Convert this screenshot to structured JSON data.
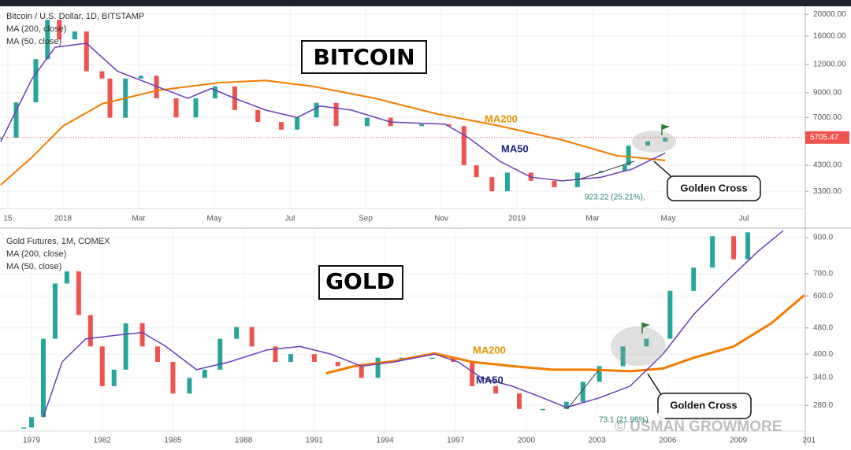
{
  "chart_data": [
    {
      "type": "candlestick",
      "title": "Bitcoin / U.S. Dollar, 1D, BITSTAMP",
      "log_scale": true,
      "grid": true,
      "xlim": [
        -1.667,
        19.625
      ],
      "ylim": [
        2770,
        21700
      ],
      "xticks": [
        {
          "value": -1.46,
          "label": "15"
        },
        {
          "value": 0,
          "label": "2018"
        },
        {
          "value": 2,
          "label": "Mar"
        },
        {
          "value": 4,
          "label": "May"
        },
        {
          "value": 6,
          "label": "Jul"
        },
        {
          "value": 8,
          "label": "Sep"
        },
        {
          "value": 10,
          "label": "Nov"
        },
        {
          "value": 12,
          "label": "2019"
        },
        {
          "value": 14,
          "label": "Mar"
        },
        {
          "value": 16,
          "label": "May"
        },
        {
          "value": 18,
          "label": "Jul"
        }
      ],
      "yticks": [
        {
          "value": 20000,
          "label": "20000.00"
        },
        {
          "value": 16000,
          "label": "16000.00"
        },
        {
          "value": 12000,
          "label": "12000.00"
        },
        {
          "value": 9000,
          "label": "9000.00"
        },
        {
          "value": 7000,
          "label": "7000.00"
        },
        {
          "value": 4300,
          "label": "4300.00"
        },
        {
          "value": 3300,
          "label": "3300.00"
        }
      ],
      "last_price": 5705.47,
      "last_price_color": "#ef5350",
      "up_color": "#26a69a",
      "down_color": "#ef5350",
      "series": [
        {
          "x": [
            -1.65,
            -1.24,
            -0.72,
            -0.41,
            -0.1,
            0.31,
            0.62,
            1.03,
            1.24,
            1.65,
            2.06,
            2.47,
            2.99,
            3.51,
            4.02,
            4.54,
            5.15,
            5.77,
            6.19,
            6.7,
            7.22,
            8.04,
            8.66,
            9.48,
            10.2,
            10.6,
            10.93,
            11.34,
            11.75,
            12.37,
            12.99,
            13.6,
            14.23,
            14.85,
            14.95,
            15.46,
            15.92
          ],
          "values": [
            5690,
            8160,
            12670,
            18900,
            15500,
            16800,
            11200,
            10400,
            6980,
            10400,
            10700,
            8500,
            7000,
            8500,
            9600,
            7550,
            6680,
            6180,
            7000,
            8120,
            6410,
            6980,
            6410,
            6530,
            6410,
            4300,
            3810,
            3300,
            3990,
            3670,
            3440,
            3990,
            4060,
            4300,
            5250,
            5480,
            5700
          ]
        },
        {
          "name": "MA (200, close)",
          "color": "#f57c00",
          "x": [
            -1.65,
            -0.82,
            0,
            1.03,
            2.47,
            4.12,
            5.36,
            6.6,
            8.25,
            9.9,
            11.55,
            13.2,
            14.64,
            15.92
          ],
          "values": [
            3520,
            4670,
            6410,
            8040,
            9200,
            9970,
            10200,
            9600,
            8500,
            7250,
            6410,
            5560,
            4740,
            4520
          ]
        },
        {
          "name": "MA (50, close)",
          "color": "#6a3db8",
          "x": [
            -1.65,
            -0.82,
            -0.21,
            0.62,
            1.44,
            2.47,
            3.3,
            3.92,
            4.54,
            5.36,
            6.19,
            6.8,
            7.63,
            8.66,
            10.1,
            10.72,
            11.55,
            12.37,
            13.2,
            14.23,
            15.05,
            15.92
          ],
          "values": [
            5460,
            10380,
            14300,
            14900,
            11200,
            9600,
            8500,
            9400,
            8500,
            7540,
            7000,
            7860,
            7540,
            6680,
            6530,
            5690,
            4480,
            3810,
            3670,
            3810,
            4140,
            4870
          ]
        }
      ],
      "annotations": [
        "BITCOIN",
        "MA200",
        "MA50",
        "Golden Cross",
        "923.22 (25.21%),"
      ]
    },
    {
      "type": "candlestick",
      "title": "Gold Futures, 1M, COMEX",
      "log_scale": true,
      "grid": true,
      "xlim": [
        1977.66,
        2011.84
      ],
      "ylim": [
        234,
        946
      ],
      "xticks": [
        1979,
        1982,
        1985,
        1988,
        1991,
        1994,
        1997,
        2000,
        2003,
        2006,
        2009,
        {
          "value": 2012,
          "label": "201"
        }
      ],
      "yticks": [
        {
          "value": 900,
          "label": "900.0"
        },
        {
          "value": 700,
          "label": "700.0"
        },
        {
          "value": 600,
          "label": "600.0"
        },
        {
          "value": 480,
          "label": "480.0"
        },
        {
          "value": 400,
          "label": "400.0"
        },
        {
          "value": 340,
          "label": "340.0"
        },
        {
          "value": 280,
          "label": "280.0"
        }
      ],
      "up_color": "#26a69a",
      "down_color": "#ef5350",
      "series": [
        {
          "x": [
            1978.67,
            1979,
            1979.5,
            1980,
            1980.5,
            1981,
            1981.5,
            1982,
            1982.5,
            1983,
            1983.7,
            1984.35,
            1985,
            1985.7,
            1986.35,
            1987,
            1987.7,
            1988.35,
            1989.35,
            1990,
            1991,
            1992,
            1993,
            1993.7,
            1994.7,
            1996,
            1996.9,
            1997.7,
            1998.7,
            1999.7,
            2000.7,
            2001.7,
            2002.4,
            2003.1,
            2004.1,
            2005.1,
            2006.1,
            2007.1,
            2007.9,
            2008.8,
            2009.4
          ],
          "values": [
            240,
            258,
            445,
            654,
            712,
            525,
            422,
            320,
            359,
            496,
            422,
            379,
            304,
            339,
            359,
            445,
            483,
            422,
            379,
            400,
            379,
            368,
            339,
            390,
            390,
            390,
            379,
            320,
            304,
            273,
            273,
            287,
            330,
            368,
            422,
            445,
            621,
            731,
            909,
            774,
            934
          ]
        },
        {
          "name": "MA (200, close)",
          "color": "#f57c00",
          "x": [
            1991.5,
            1992.7,
            1994.4,
            1996.1,
            1997.7,
            1999.4,
            2001.1,
            2002.7,
            2004.4,
            2005.8,
            2007.1,
            2008.8,
            2010.4,
            2011.8
          ],
          "values": [
            350,
            368,
            381,
            402,
            379,
            368,
            359,
            359,
            355,
            362,
            390,
            422,
            496,
            603
          ]
        },
        {
          "name": "MA (50, close)",
          "color": "#6a3db8",
          "x": [
            1979.5,
            1980.3,
            1981.3,
            1982.7,
            1983.7,
            1984.7,
            1986,
            1987.4,
            1989,
            1990.4,
            1991.7,
            1993,
            1994.4,
            1996.1,
            1997.1,
            1998.1,
            1999.4,
            2000.7,
            2001.7,
            2003.1,
            2004.4,
            2005.8,
            2007.1,
            2008.4,
            2009.8,
            2010.9
          ],
          "values": [
            258,
            379,
            445,
            457,
            465,
            422,
            359,
            379,
            412,
            422,
            400,
            368,
            379,
            400,
            379,
            339,
            320,
            295,
            276,
            295,
            320,
            400,
            527,
            654,
            814,
            945
          ]
        }
      ],
      "annotations": [
        "GOLD",
        "MA200",
        "MA50",
        "Golden Cross",
        "73.1 (21.98%)"
      ],
      "watermark": "© USMAN GROWMORE"
    }
  ]
}
